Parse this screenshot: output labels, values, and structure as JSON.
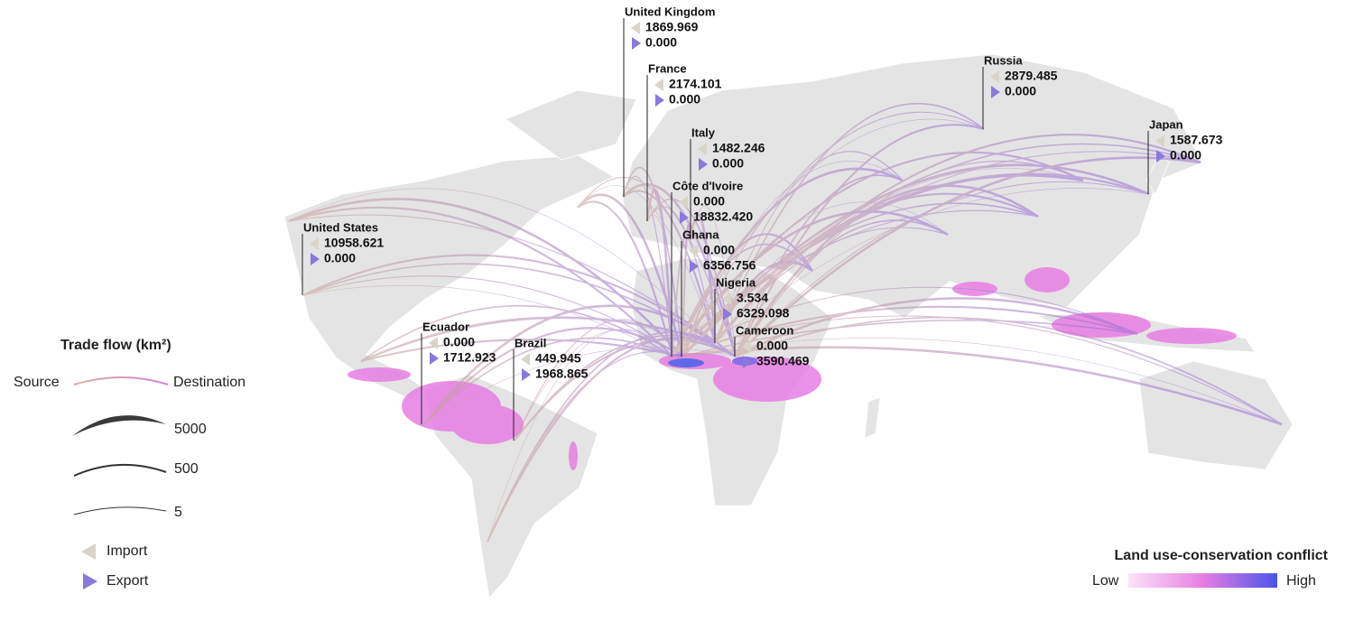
{
  "legend": {
    "title": "Trade flow (km²)",
    "source": "Source",
    "destination": "Destination",
    "sizes": [
      "5000",
      "500",
      "5"
    ],
    "import": "Import",
    "export": "Export"
  },
  "conflict_legend": {
    "title": "Land use-conservation conflict",
    "low": "Low",
    "high": "High"
  },
  "countries": [
    {
      "name": "United Kingdom",
      "import": "1869.969",
      "export": "0.000"
    },
    {
      "name": "France",
      "import": "2174.101",
      "export": "0.000"
    },
    {
      "name": "Italy",
      "import": "1482.246",
      "export": "0.000"
    },
    {
      "name": "Côte d'Ivoire",
      "import": "0.000",
      "export": "18832.420"
    },
    {
      "name": "Ghana",
      "import": "0.000",
      "export": "6356.756"
    },
    {
      "name": "Nigeria",
      "import": "3.534",
      "export": "6329.098"
    },
    {
      "name": "Cameroon",
      "import": "0.000",
      "export": "3590.469"
    },
    {
      "name": "United States",
      "import": "10958.621",
      "export": "0.000"
    },
    {
      "name": "Ecuador",
      "import": "0.000",
      "export": "1712.923"
    },
    {
      "name": "Brazil",
      "import": "449.945",
      "export": "1968.865"
    },
    {
      "name": "Russia",
      "import": "2879.485",
      "export": "0.000"
    },
    {
      "name": "Japan",
      "import": "1587.673",
      "export": "0.000"
    }
  ]
}
